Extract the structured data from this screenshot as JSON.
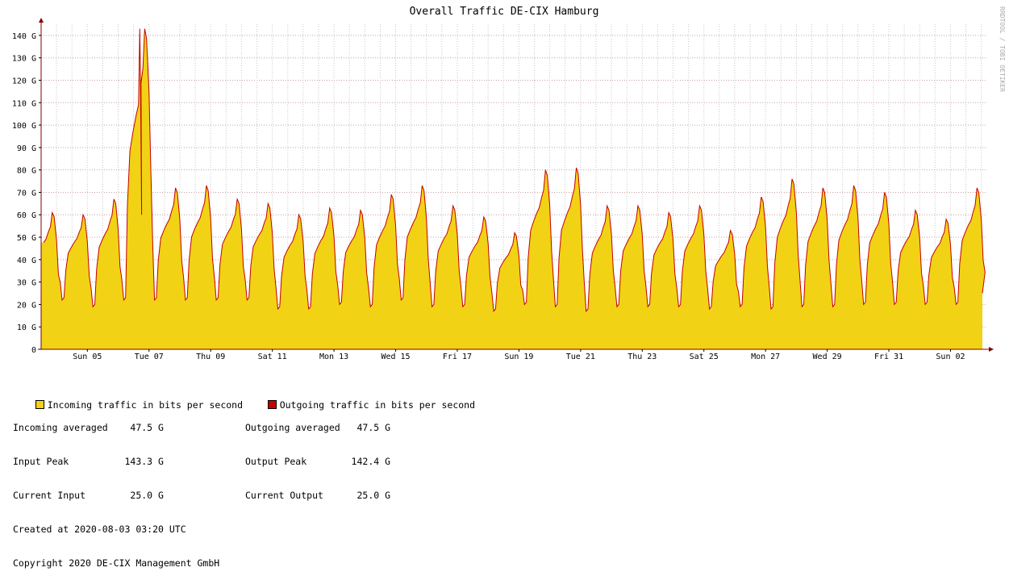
{
  "chart_data": {
    "type": "area",
    "title": "Overall Traffic DE-CIX Hamburg",
    "watermark": "RRDTOOL / TOBI OETIKER",
    "ylim": [
      0,
      145
    ],
    "yticks": [
      {
        "v": 0,
        "label": "0"
      },
      {
        "v": 10,
        "label": "10 G"
      },
      {
        "v": 20,
        "label": "20 G"
      },
      {
        "v": 30,
        "label": "30 G"
      },
      {
        "v": 40,
        "label": "40 G"
      },
      {
        "v": 50,
        "label": "50 G"
      },
      {
        "v": 60,
        "label": "60 G"
      },
      {
        "v": 70,
        "label": "70 G"
      },
      {
        "v": 80,
        "label": "80 G"
      },
      {
        "v": 90,
        "label": "90 G"
      },
      {
        "v": 100,
        "label": "100 G"
      },
      {
        "v": 110,
        "label": "110 G"
      },
      {
        "v": 120,
        "label": "120 G"
      },
      {
        "v": 130,
        "label": "130 G"
      },
      {
        "v": 140,
        "label": "140 G"
      }
    ],
    "xlim": [
      "2020-07-03 12:00",
      "2020-08-03 03:20"
    ],
    "xticks": [
      {
        "date": "2020-07-05",
        "label": "Sun 05"
      },
      {
        "date": "2020-07-07",
        "label": "Tue 07"
      },
      {
        "date": "2020-07-09",
        "label": "Thu 09"
      },
      {
        "date": "2020-07-11",
        "label": "Sat 11"
      },
      {
        "date": "2020-07-13",
        "label": "Mon 13"
      },
      {
        "date": "2020-07-15",
        "label": "Wed 15"
      },
      {
        "date": "2020-07-17",
        "label": "Fri 17"
      },
      {
        "date": "2020-07-19",
        "label": "Sun 19"
      },
      {
        "date": "2020-07-21",
        "label": "Tue 21"
      },
      {
        "date": "2020-07-23",
        "label": "Thu 23"
      },
      {
        "date": "2020-07-25",
        "label": "Sat 25"
      },
      {
        "date": "2020-07-27",
        "label": "Mon 27"
      },
      {
        "date": "2020-07-29",
        "label": "Wed 29"
      },
      {
        "date": "2020-07-31",
        "label": "Fri 31"
      },
      {
        "date": "2020-08-02",
        "label": "Sun 02"
      }
    ],
    "daily_traffic": [
      {
        "date": "2020-07-03",
        "min": 19,
        "max": 61
      },
      {
        "date": "2020-07-04",
        "min": 22,
        "max": 60
      },
      {
        "date": "2020-07-05",
        "min": 19,
        "max": 67
      },
      {
        "date": "2020-07-06",
        "min": 22,
        "max": 143
      },
      {
        "date": "2020-07-07",
        "min": 22,
        "max": 72
      },
      {
        "date": "2020-07-08",
        "min": 22,
        "max": 73
      },
      {
        "date": "2020-07-09",
        "min": 22,
        "max": 67
      },
      {
        "date": "2020-07-10",
        "min": 22,
        "max": 65
      },
      {
        "date": "2020-07-11",
        "min": 18,
        "max": 60
      },
      {
        "date": "2020-07-12",
        "min": 18,
        "max": 63
      },
      {
        "date": "2020-07-13",
        "min": 20,
        "max": 62
      },
      {
        "date": "2020-07-14",
        "min": 19,
        "max": 69
      },
      {
        "date": "2020-07-15",
        "min": 22,
        "max": 73
      },
      {
        "date": "2020-07-16",
        "min": 19,
        "max": 64
      },
      {
        "date": "2020-07-17",
        "min": 19,
        "max": 59
      },
      {
        "date": "2020-07-18",
        "min": 17,
        "max": 52
      },
      {
        "date": "2020-07-19",
        "min": 20,
        "max": 80
      },
      {
        "date": "2020-07-20",
        "min": 19,
        "max": 81
      },
      {
        "date": "2020-07-21",
        "min": 17,
        "max": 64
      },
      {
        "date": "2020-07-22",
        "min": 19,
        "max": 64
      },
      {
        "date": "2020-07-23",
        "min": 19,
        "max": 61
      },
      {
        "date": "2020-07-24",
        "min": 19,
        "max": 64
      },
      {
        "date": "2020-07-25",
        "min": 18,
        "max": 53
      },
      {
        "date": "2020-07-26",
        "min": 19,
        "max": 68
      },
      {
        "date": "2020-07-27",
        "min": 18,
        "max": 76
      },
      {
        "date": "2020-07-28",
        "min": 19,
        "max": 72
      },
      {
        "date": "2020-07-29",
        "min": 19,
        "max": 73
      },
      {
        "date": "2020-07-30",
        "min": 20,
        "max": 70
      },
      {
        "date": "2020-07-31",
        "min": 20,
        "max": 62
      },
      {
        "date": "2020-08-01",
        "min": 20,
        "max": 58
      },
      {
        "date": "2020-08-02",
        "min": 20,
        "max": 72
      },
      {
        "date": "2020-08-03",
        "min": 25,
        "max": 25
      }
    ],
    "series": [
      {
        "name": "Incoming traffic in bits per second",
        "color": "#f2d215"
      },
      {
        "name": "Outgoing traffic in bits per second",
        "color": "#c40000"
      }
    ],
    "grid": true
  },
  "legend": {
    "incoming_label": "Incoming traffic in bits per second",
    "outgoing_label": "Outgoing traffic in bits per second",
    "stats": [
      {
        "left": "Incoming averaged    47.5 G",
        "right": "Outgoing averaged   47.5 G"
      },
      {
        "left": "Input Peak          143.3 G",
        "right": "Output Peak        142.4 G"
      },
      {
        "left": "Current Input        25.0 G",
        "right": "Current Output      25.0 G"
      }
    ],
    "created": "Created at 2020-08-03 03:20 UTC",
    "copyright": "Copyright 2020 DE-CIX Management GmbH"
  },
  "colors": {
    "incoming": "#f2d215",
    "outgoing": "#c40000",
    "grid": "#bbbbbb",
    "axis": "#7f0000"
  }
}
